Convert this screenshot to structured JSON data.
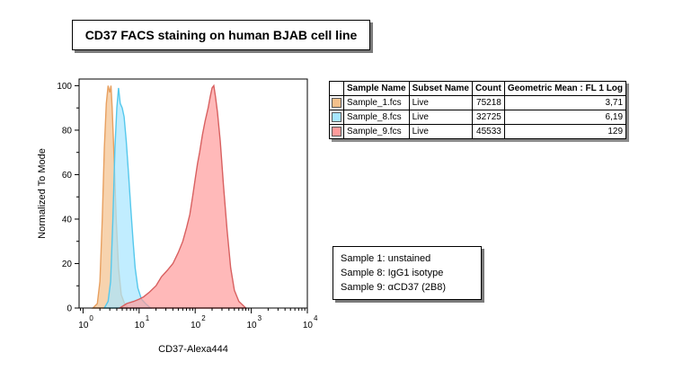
{
  "title": "CD37 FACS staining on human BJAB cell line",
  "chart_data": {
    "type": "area",
    "xlabel": "CD37-Alexa444",
    "ylabel": "Normalized To Mode",
    "xscale": "log",
    "xlim": [
      0.85,
      10000
    ],
    "ylim": [
      0,
      103
    ],
    "x_ticks": [
      {
        "base": "10",
        "exp": "0",
        "value": 1
      },
      {
        "base": "10",
        "exp": "1",
        "value": 10
      },
      {
        "base": "10",
        "exp": "2",
        "value": 100
      },
      {
        "base": "10",
        "exp": "3",
        "value": 1000
      },
      {
        "base": "10",
        "exp": "4",
        "value": 10000
      }
    ],
    "y_ticks": [
      0,
      20,
      40,
      60,
      80,
      100
    ],
    "series": [
      {
        "name": "Sample_1.fcs",
        "fill": "#f4c08c",
        "stroke": "#e8a060",
        "points": [
          [
            1.5,
            0
          ],
          [
            1.8,
            2
          ],
          [
            2.0,
            12
          ],
          [
            2.2,
            40
          ],
          [
            2.4,
            72
          ],
          [
            2.6,
            92
          ],
          [
            2.8,
            100
          ],
          [
            3.0,
            97
          ],
          [
            3.15,
            100
          ],
          [
            3.3,
            90
          ],
          [
            3.6,
            66
          ],
          [
            3.9,
            40
          ],
          [
            4.3,
            18
          ],
          [
            4.8,
            6
          ],
          [
            5.5,
            2
          ],
          [
            6.5,
            0
          ]
        ]
      },
      {
        "name": "Sample_8.fcs",
        "fill": "#a7e6ff",
        "stroke": "#55c8ec",
        "points": [
          [
            2.4,
            0
          ],
          [
            2.8,
            3
          ],
          [
            3.1,
            12
          ],
          [
            3.4,
            40
          ],
          [
            3.7,
            72
          ],
          [
            4.0,
            90
          ],
          [
            4.3,
            99
          ],
          [
            4.6,
            92
          ],
          [
            5.0,
            90
          ],
          [
            5.4,
            86
          ],
          [
            5.9,
            75
          ],
          [
            6.5,
            60
          ],
          [
            7.1,
            45
          ],
          [
            7.8,
            30
          ],
          [
            8.5,
            18
          ],
          [
            9.5,
            9
          ],
          [
            11,
            4
          ],
          [
            13,
            2
          ],
          [
            16,
            0
          ]
        ]
      },
      {
        "name": "Sample_9.fcs",
        "fill": "#ff9b9b",
        "stroke": "#d86060",
        "points": [
          [
            4.5,
            0
          ],
          [
            6,
            2
          ],
          [
            8,
            3
          ],
          [
            10,
            4
          ],
          [
            12,
            5
          ],
          [
            15,
            7
          ],
          [
            20,
            10
          ],
          [
            25,
            14
          ],
          [
            32,
            17
          ],
          [
            40,
            20
          ],
          [
            50,
            25
          ],
          [
            60,
            30
          ],
          [
            70,
            36
          ],
          [
            80,
            42
          ],
          [
            90,
            50
          ],
          [
            100,
            58
          ],
          [
            110,
            65
          ],
          [
            120,
            70
          ],
          [
            135,
            78
          ],
          [
            150,
            84
          ],
          [
            170,
            90
          ],
          [
            185,
            95
          ],
          [
            200,
            99
          ],
          [
            215,
            100
          ],
          [
            230,
            95
          ],
          [
            250,
            88
          ],
          [
            280,
            75
          ],
          [
            320,
            55
          ],
          [
            370,
            35
          ],
          [
            430,
            18
          ],
          [
            500,
            8
          ],
          [
            600,
            3
          ],
          [
            800,
            0
          ]
        ]
      }
    ]
  },
  "stats_table": {
    "headers": [
      "Sample Name",
      "Subset Name",
      "Count",
      "Geometric Mean : FL 1 Log"
    ],
    "rows": [
      {
        "color": "#f4c08c",
        "name": "Sample_1.fcs",
        "subset": "Live",
        "count": "75218",
        "mean": "3,71"
      },
      {
        "color": "#a7e6ff",
        "name": "Sample_8.fcs",
        "subset": "Live",
        "count": "32725",
        "mean": "6,19"
      },
      {
        "color": "#ff9b9b",
        "name": "Sample_9.fcs",
        "subset": "Live",
        "count": "45533",
        "mean": "129"
      }
    ]
  },
  "legend": [
    "Sample 1: unstained",
    "Sample 8: IgG1 isotype",
    "Sample 9: αCD37 (2B8)"
  ]
}
